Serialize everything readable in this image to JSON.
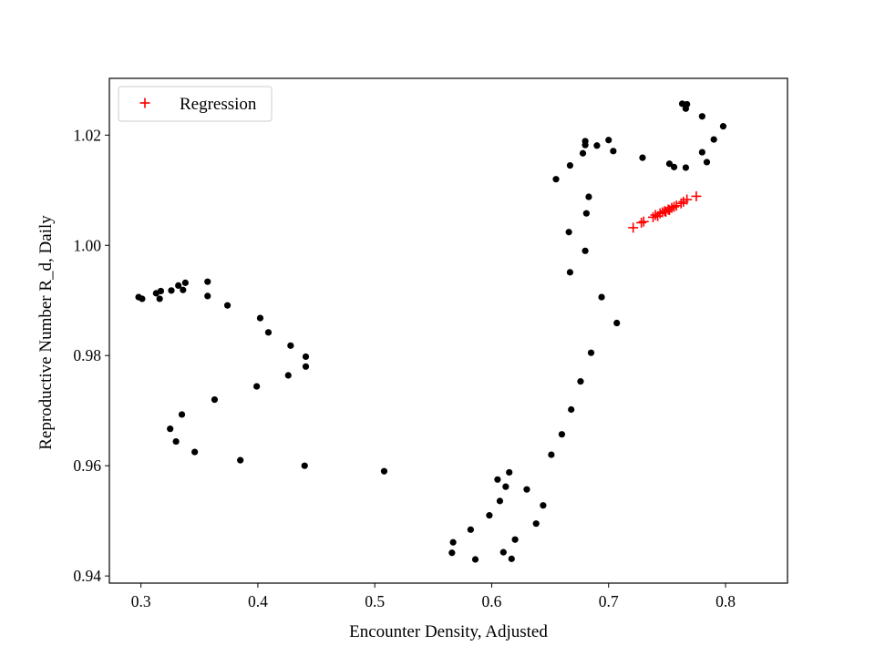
{
  "chart_data": {
    "type": "scatter",
    "title": "",
    "xlabel": "Encounter Density, Adjusted",
    "ylabel": "Reproductive Number R_d, Daily",
    "xlim": [
      0.273,
      0.853
    ],
    "ylim": [
      0.9387,
      1.0303
    ],
    "xticks": [
      0.3,
      0.4,
      0.5,
      0.6,
      0.7,
      0.8
    ],
    "yticks": [
      0.94,
      0.96,
      0.98,
      1.0,
      1.02
    ],
    "xtick_labels": [
      "0.3",
      "0.4",
      "0.5",
      "0.6",
      "0.7",
      "0.8"
    ],
    "ytick_labels": [
      "0.94",
      "0.96",
      "0.98",
      "1.00",
      "1.02"
    ],
    "grid": false,
    "legend": {
      "position": "top-left",
      "entries": [
        "Regression"
      ]
    },
    "series": [
      {
        "marker": "dot",
        "color": "#000000",
        "points": [
          [
            0.298,
            0.9906
          ],
          [
            0.301,
            0.9903
          ],
          [
            0.313,
            0.9913
          ],
          [
            0.316,
            0.9903
          ],
          [
            0.317,
            0.9917
          ],
          [
            0.326,
            0.9918
          ],
          [
            0.332,
            0.9927
          ],
          [
            0.336,
            0.9919
          ],
          [
            0.338,
            0.9932
          ],
          [
            0.357,
            0.9934
          ],
          [
            0.357,
            0.9908
          ],
          [
            0.374,
            0.9891
          ],
          [
            0.402,
            0.9868
          ],
          [
            0.409,
            0.9842
          ],
          [
            0.428,
            0.9818
          ],
          [
            0.441,
            0.9798
          ],
          [
            0.441,
            0.978
          ],
          [
            0.426,
            0.9764
          ],
          [
            0.399,
            0.9744
          ],
          [
            0.363,
            0.972
          ],
          [
            0.335,
            0.9693
          ],
          [
            0.325,
            0.9667
          ],
          [
            0.33,
            0.9644
          ],
          [
            0.346,
            0.9625
          ],
          [
            0.385,
            0.961
          ],
          [
            0.44,
            0.96
          ],
          [
            0.508,
            0.959
          ],
          [
            0.566,
            0.9442
          ],
          [
            0.567,
            0.9461
          ],
          [
            0.582,
            0.9484
          ],
          [
            0.586,
            0.943
          ],
          [
            0.598,
            0.951
          ],
          [
            0.605,
            0.9575
          ],
          [
            0.607,
            0.9536
          ],
          [
            0.61,
            0.9443
          ],
          [
            0.612,
            0.9562
          ],
          [
            0.615,
            0.9588
          ],
          [
            0.617,
            0.9431
          ],
          [
            0.62,
            0.9466
          ],
          [
            0.63,
            0.9557
          ],
          [
            0.638,
            0.9495
          ],
          [
            0.644,
            0.9528
          ],
          [
            0.651,
            0.962
          ],
          [
            0.66,
            0.9657
          ],
          [
            0.668,
            0.9702
          ],
          [
            0.676,
            0.9753
          ],
          [
            0.685,
            0.9805
          ],
          [
            0.707,
            0.9859
          ],
          [
            0.694,
            0.9906
          ],
          [
            0.667,
            0.9951
          ],
          [
            0.68,
            0.999
          ],
          [
            0.666,
            1.0024
          ],
          [
            0.681,
            1.0058
          ],
          [
            0.683,
            1.0088
          ],
          [
            0.655,
            1.012
          ],
          [
            0.667,
            1.0145
          ],
          [
            0.678,
            1.0167
          ],
          [
            0.68,
            1.0182
          ],
          [
            0.68,
            1.0189
          ],
          [
            0.69,
            1.0181
          ],
          [
            0.7,
            1.0191
          ],
          [
            0.704,
            1.0171
          ],
          [
            0.729,
            1.0159
          ],
          [
            0.752,
            1.0148
          ],
          [
            0.756,
            1.0142
          ],
          [
            0.766,
            1.0141
          ],
          [
            0.763,
            1.0257
          ],
          [
            0.767,
            1.0256
          ],
          [
            0.766,
            1.0248
          ],
          [
            0.78,
            1.0234
          ],
          [
            0.79,
            1.0192
          ],
          [
            0.798,
            1.0216
          ],
          [
            0.78,
            1.0169
          ],
          [
            0.784,
            1.0151
          ]
        ]
      },
      {
        "name": "Regression",
        "marker": "plus",
        "color": "#ff0000",
        "points": [
          [
            0.721,
            1.0032
          ],
          [
            0.728,
            1.0041
          ],
          [
            0.73,
            1.0043
          ],
          [
            0.738,
            1.0051
          ],
          [
            0.74,
            1.0055
          ],
          [
            0.742,
            1.0053
          ],
          [
            0.744,
            1.0058
          ],
          [
            0.746,
            1.006
          ],
          [
            0.748,
            1.0062
          ],
          [
            0.749,
            1.0061
          ],
          [
            0.751,
            1.0065
          ],
          [
            0.752,
            1.0064
          ],
          [
            0.754,
            1.0068
          ],
          [
            0.756,
            1.007
          ],
          [
            0.758,
            1.0072
          ],
          [
            0.762,
            1.0076
          ],
          [
            0.764,
            1.0079
          ],
          [
            0.767,
            1.0083
          ],
          [
            0.775,
            1.0089
          ]
        ]
      }
    ]
  }
}
